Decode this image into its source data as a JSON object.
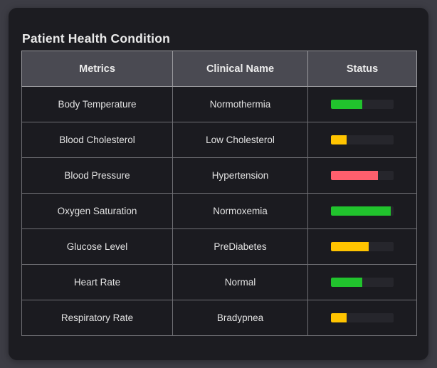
{
  "page": {
    "background_color": "#3d3d45"
  },
  "card": {
    "title": "Patient Health Condition",
    "background_color": "#1c1c21"
  },
  "palette": {
    "green": "#21c32d",
    "yellow": "#ffc400",
    "red": "#ff5f6d",
    "bar_track": "#26262c",
    "header_background": "#4a4a52"
  },
  "table": {
    "columns": [
      {
        "label": "Metrics"
      },
      {
        "label": "Clinical Name"
      },
      {
        "label": "Status"
      }
    ],
    "rows": [
      {
        "metric": "Body Temperature",
        "clinical_name": "Normothermia",
        "status": {
          "percent": 50,
          "color": "#21c32d"
        }
      },
      {
        "metric": "Blood Cholesterol",
        "clinical_name": "Low Cholesterol",
        "status": {
          "percent": 25,
          "color": "#ffc400"
        }
      },
      {
        "metric": "Blood Pressure",
        "clinical_name": "Hypertension",
        "status": {
          "percent": 75,
          "color": "#ff5f6d"
        }
      },
      {
        "metric": "Oxygen Saturation",
        "clinical_name": "Normoxemia",
        "status": {
          "percent": 95,
          "color": "#21c32d"
        }
      },
      {
        "metric": "Glucose Level",
        "clinical_name": "PreDiabetes",
        "status": {
          "percent": 60,
          "color": "#ffc400"
        }
      },
      {
        "metric": "Heart Rate",
        "clinical_name": "Normal",
        "status": {
          "percent": 50,
          "color": "#21c32d"
        }
      },
      {
        "metric": "Respiratory Rate",
        "clinical_name": "Bradypnea",
        "status": {
          "percent": 25,
          "color": "#ffc400"
        }
      }
    ]
  }
}
